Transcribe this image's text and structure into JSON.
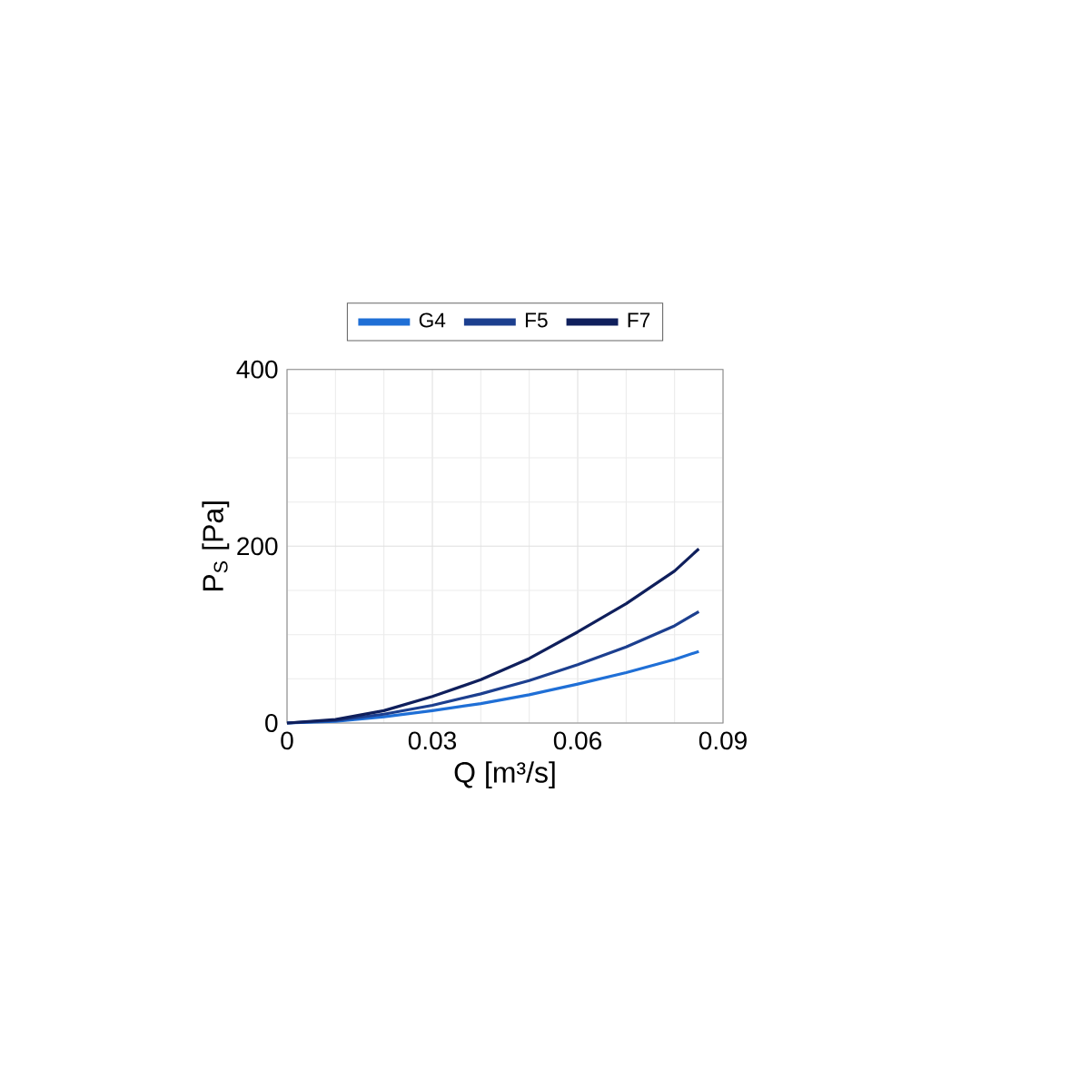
{
  "chart_data": {
    "type": "line",
    "xlabel": "Q [m³/s]",
    "ylabel": "P$_{S}$ [Pa]",
    "xlim": [
      0,
      0.09
    ],
    "xticks": [
      0,
      0.03,
      0.06,
      0.09
    ],
    "ylim": [
      0,
      400
    ],
    "yticks": [
      0,
      200,
      400
    ],
    "grid": true,
    "legend": "top",
    "marker": "none",
    "line_style": "solid",
    "series": [
      {
        "name": "G4",
        "color": "#1f6fd6",
        "x": [
          0,
          0.01,
          0.02,
          0.03,
          0.04,
          0.05,
          0.06,
          0.07,
          0.08,
          0.085
        ],
        "values": [
          0,
          2,
          7,
          14,
          22,
          32,
          44,
          57,
          72,
          81
        ]
      },
      {
        "name": "F5",
        "color": "#1c3f8f",
        "x": [
          0,
          0.01,
          0.02,
          0.03,
          0.04,
          0.05,
          0.06,
          0.07,
          0.08,
          0.085
        ],
        "values": [
          0,
          3,
          10,
          20,
          33,
          48,
          66,
          86,
          110,
          126
        ]
      },
      {
        "name": "F7",
        "color": "#0f1f5c",
        "x": [
          0,
          0.01,
          0.02,
          0.03,
          0.04,
          0.05,
          0.06,
          0.07,
          0.08,
          0.085
        ],
        "values": [
          0,
          4,
          14,
          30,
          49,
          73,
          103,
          135,
          172,
          197
        ]
      }
    ]
  }
}
